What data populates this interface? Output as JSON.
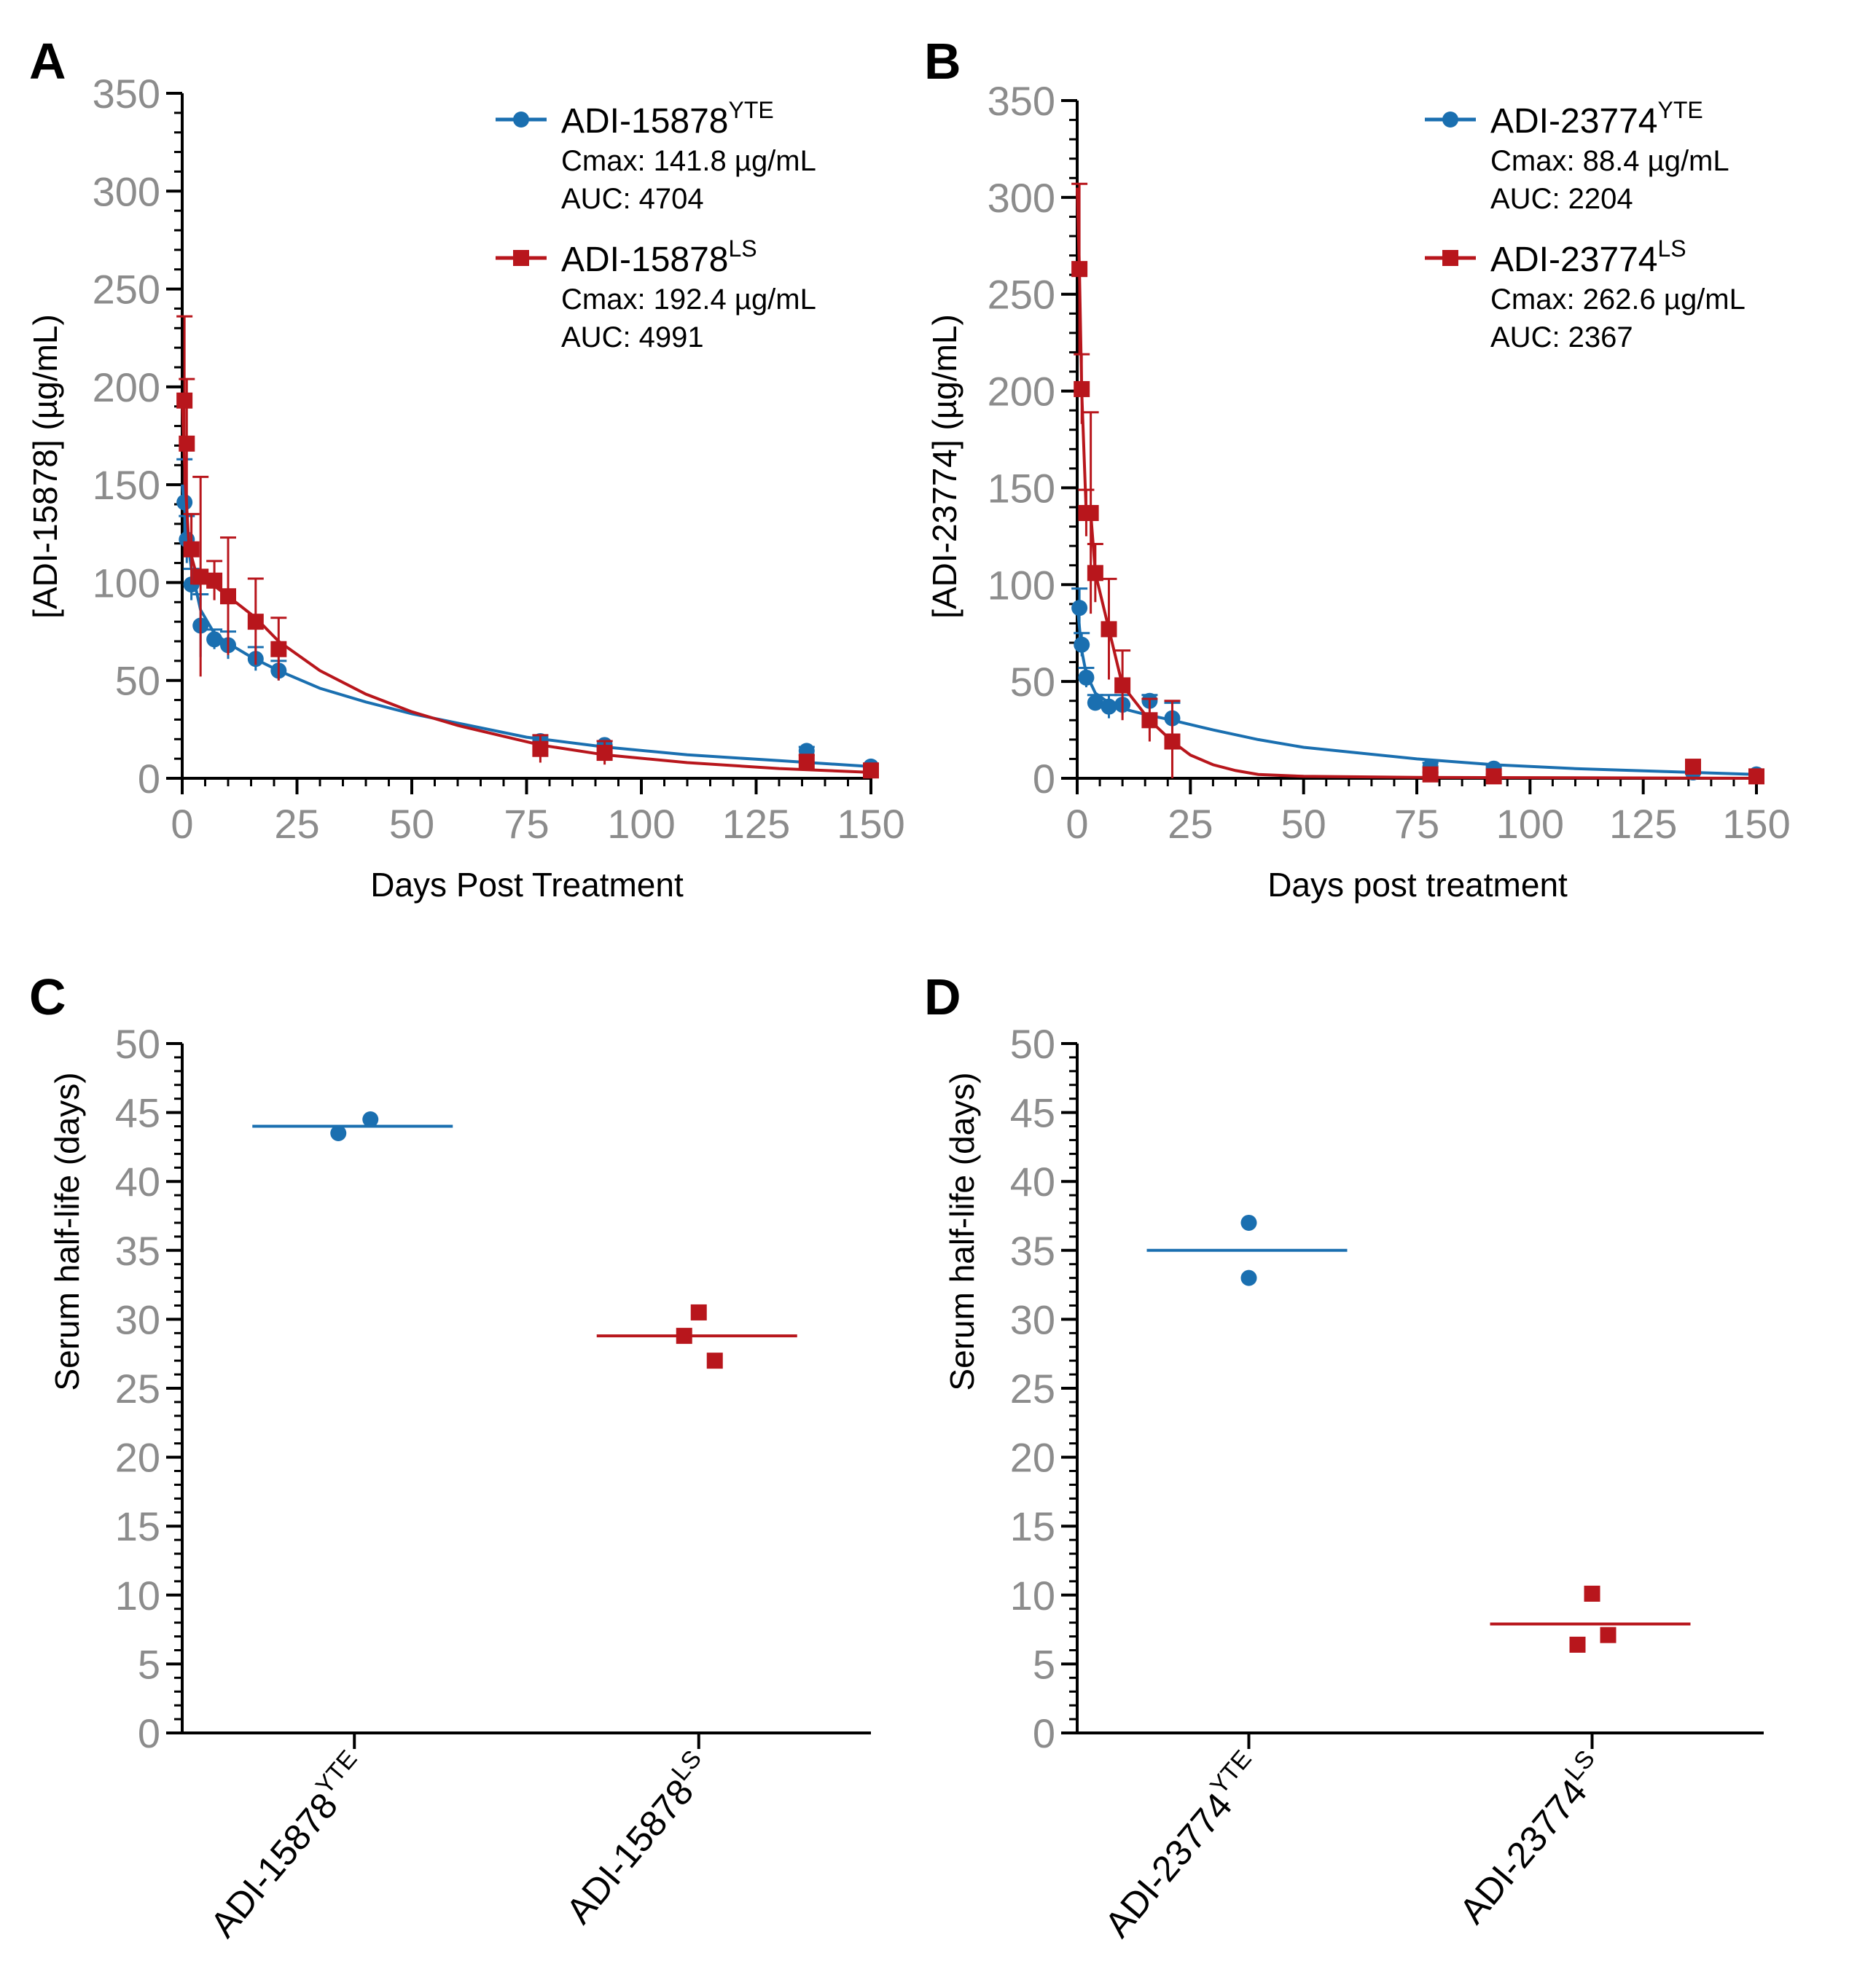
{
  "colors": {
    "blue": "#1a6fb0",
    "red": "#b8161c",
    "axis": "#000000",
    "tick_label": "#8c8c8c"
  },
  "chart_data": [
    {
      "panel": "A",
      "type": "line",
      "xlabel": "Days Post Treatment",
      "ylabel": "[ADI-15878] (µg/mL)",
      "xlim": [
        0,
        150
      ],
      "ylim": [
        0,
        350
      ],
      "xticks": [
        0,
        25,
        50,
        75,
        100,
        125,
        150
      ],
      "yticks": [
        0,
        50,
        100,
        150,
        200,
        250,
        300,
        350
      ],
      "legend_position": "top-right",
      "series": [
        {
          "name": "ADI-15878",
          "sup": "YTE",
          "color": "blue",
          "marker": "circle",
          "cmax": "Cmax: 141.8 µg/mL",
          "auc": "AUC: 4704",
          "points": [
            {
              "x": 0.5,
              "y": 141,
              "err": 22
            },
            {
              "x": 1,
              "y": 122,
              "err": 12
            },
            {
              "x": 2,
              "y": 99,
              "err": 8
            },
            {
              "x": 4,
              "y": 78,
              "err": 16
            },
            {
              "x": 7,
              "y": 71,
              "err": 5
            },
            {
              "x": 10,
              "y": 68,
              "err": 7
            },
            {
              "x": 16,
              "y": 61,
              "err": 6
            },
            {
              "x": 21,
              "y": 55,
              "err": 5
            },
            {
              "x": 78,
              "y": 19,
              "err": 2
            },
            {
              "x": 92,
              "y": 17,
              "err": 2
            },
            {
              "x": 136,
              "y": 14,
              "err": 2
            },
            {
              "x": 150,
              "y": 6,
              "err": 1
            }
          ],
          "fit": [
            [
              0,
              150
            ],
            [
              1,
              125
            ],
            [
              2,
              107
            ],
            [
              4,
              86
            ],
            [
              7,
              74
            ],
            [
              10,
              69
            ],
            [
              15,
              62
            ],
            [
              21,
              55
            ],
            [
              30,
              46
            ],
            [
              40,
              39
            ],
            [
              50,
              33
            ],
            [
              75,
              21
            ],
            [
              92,
              16
            ],
            [
              110,
              12
            ],
            [
              130,
              9
            ],
            [
              150,
              6
            ]
          ]
        },
        {
          "name": "ADI-15878",
          "sup": "LS",
          "color": "red",
          "marker": "square",
          "cmax": "Cmax: 192.4 µg/mL",
          "auc": "AUC: 4991",
          "points": [
            {
              "x": 0.5,
              "y": 193,
              "err": 43
            },
            {
              "x": 1,
              "y": 171,
              "err": 33
            },
            {
              "x": 2,
              "y": 117,
              "err": 18
            },
            {
              "x": 4,
              "y": 103,
              "err": 51
            },
            {
              "x": 7,
              "y": 101,
              "err": 10
            },
            {
              "x": 10,
              "y": 93,
              "err": 30
            },
            {
              "x": 16,
              "y": 80,
              "err": 22
            },
            {
              "x": 21,
              "y": 66,
              "err": 16
            },
            {
              "x": 78,
              "y": 15,
              "err": 7
            },
            {
              "x": 92,
              "y": 13,
              "err": 6
            },
            {
              "x": 136,
              "y": 8,
              "err": 4
            },
            {
              "x": 150,
              "y": 4,
              "err": 1
            }
          ],
          "fit": [
            [
              0,
              192
            ],
            [
              0.7,
              150
            ],
            [
              1.5,
              118
            ],
            [
              3,
              105
            ],
            [
              6,
              100
            ],
            [
              10,
              93
            ],
            [
              16,
              82
            ],
            [
              21,
              70
            ],
            [
              30,
              55
            ],
            [
              40,
              43
            ],
            [
              50,
              34
            ],
            [
              60,
              27
            ],
            [
              78,
              17
            ],
            [
              92,
              12
            ],
            [
              110,
              8
            ],
            [
              130,
              5
            ],
            [
              150,
              3
            ]
          ]
        }
      ]
    },
    {
      "panel": "B",
      "type": "line",
      "xlabel": "Days post treatment",
      "ylabel": "[ADI-23774] (µg/mL)",
      "xlim": [
        0,
        150
      ],
      "ylim": [
        0,
        350
      ],
      "xticks": [
        0,
        25,
        50,
        75,
        100,
        125,
        150
      ],
      "yticks": [
        0,
        50,
        100,
        150,
        200,
        250,
        300,
        350
      ],
      "legend_position": "top-right",
      "series": [
        {
          "name": "ADI-23774",
          "sup": "YTE",
          "color": "blue",
          "marker": "circle",
          "cmax": "Cmax: 88.4 µg/mL",
          "auc": "AUC: 2204",
          "points": [
            {
              "x": 0.5,
              "y": 88,
              "err": 10
            },
            {
              "x": 1,
              "y": 69,
              "err": 6
            },
            {
              "x": 2,
              "y": 52,
              "err": 5
            },
            {
              "x": 4,
              "y": 39,
              "err": 4
            },
            {
              "x": 7,
              "y": 37,
              "err": 6
            },
            {
              "x": 10,
              "y": 38,
              "err": 5
            },
            {
              "x": 16,
              "y": 40,
              "err": 3
            },
            {
              "x": 21,
              "y": 31,
              "err": 8
            },
            {
              "x": 78,
              "y": 6,
              "err": 2
            },
            {
              "x": 92,
              "y": 5,
              "err": 1
            },
            {
              "x": 136,
              "y": 3,
              "err": 1
            },
            {
              "x": 150,
              "y": 2,
              "err": 1
            }
          ],
          "fit": [
            [
              0,
              90
            ],
            [
              1,
              66
            ],
            [
              2,
              54
            ],
            [
              4,
              44
            ],
            [
              7,
              39
            ],
            [
              10,
              36
            ],
            [
              15,
              33
            ],
            [
              21,
              30
            ],
            [
              30,
              25
            ],
            [
              40,
              20
            ],
            [
              50,
              16
            ],
            [
              75,
              10
            ],
            [
              92,
              7
            ],
            [
              110,
              5
            ],
            [
              130,
              3.5
            ],
            [
              150,
              2
            ]
          ]
        },
        {
          "name": "ADI-23774",
          "sup": "LS",
          "color": "red",
          "marker": "square",
          "cmax": "Cmax: 262.6 µg/mL",
          "auc": "AUC: 2367",
          "points": [
            {
              "x": 0.5,
              "y": 263,
              "err": 44
            },
            {
              "x": 1,
              "y": 201,
              "err": 18
            },
            {
              "x": 2,
              "y": 137,
              "err": 12
            },
            {
              "x": 3,
              "y": 137,
              "err": 52
            },
            {
              "x": 4,
              "y": 106,
              "err": 15
            },
            {
              "x": 7,
              "y": 77,
              "err": 26
            },
            {
              "x": 10,
              "y": 48,
              "err": 18
            },
            {
              "x": 16,
              "y": 30,
              "err": 11
            },
            {
              "x": 21,
              "y": 19,
              "err": 21
            },
            {
              "x": 78,
              "y": 2,
              "err": 1
            },
            {
              "x": 92,
              "y": 1,
              "err": 1
            },
            {
              "x": 136,
              "y": 6,
              "err": 2
            },
            {
              "x": 150,
              "y": 1,
              "err": 1
            }
          ],
          "fit": [
            [
              0,
              305
            ],
            [
              0.5,
              262
            ],
            [
              1,
              200
            ],
            [
              2,
              137
            ],
            [
              3,
              137
            ],
            [
              4,
              106
            ],
            [
              7,
              77
            ],
            [
              10,
              48
            ],
            [
              16,
              30
            ],
            [
              21,
              19
            ],
            [
              25,
              12
            ],
            [
              30,
              7
            ],
            [
              35,
              4
            ],
            [
              40,
              2
            ],
            [
              50,
              1
            ],
            [
              75,
              0.5
            ],
            [
              150,
              0
            ]
          ]
        }
      ]
    },
    {
      "panel": "C",
      "type": "scatter",
      "ylabel": "Serum half-life (days)",
      "ylim": [
        0,
        50
      ],
      "yticks": [
        0,
        5,
        10,
        15,
        20,
        25,
        30,
        35,
        40,
        45,
        50
      ],
      "categories": [
        {
          "name": "ADI-15878",
          "sup": "YTE",
          "color": "blue",
          "marker": "circle",
          "values": [
            43.5,
            44.5
          ],
          "mean": 44
        },
        {
          "name": "ADI-15878",
          "sup": "LS",
          "color": "red",
          "marker": "square",
          "values": [
            30.5,
            28.8,
            27
          ],
          "mean": 28.8
        }
      ]
    },
    {
      "panel": "D",
      "type": "scatter",
      "ylabel": "Serum half-life (days)",
      "ylim": [
        0,
        50
      ],
      "yticks": [
        0,
        5,
        10,
        15,
        20,
        25,
        30,
        35,
        40,
        45,
        50
      ],
      "categories": [
        {
          "name": "ADI-23774",
          "sup": "YTE",
          "color": "blue",
          "marker": "circle",
          "values": [
            37,
            33
          ],
          "mean": 35
        },
        {
          "name": "ADI-23774",
          "sup": "LS",
          "color": "red",
          "marker": "square",
          "values": [
            10.1,
            6.4,
            7.1
          ],
          "mean": 7.9
        }
      ]
    }
  ]
}
